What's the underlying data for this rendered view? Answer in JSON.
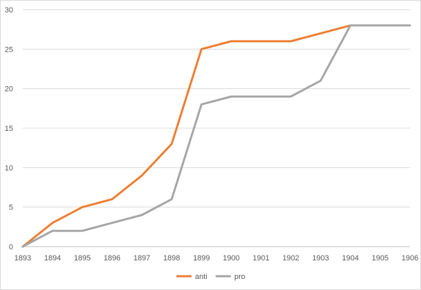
{
  "chart_data": {
    "type": "line",
    "categories": [
      "1893",
      "1894",
      "1895",
      "1896",
      "1897",
      "1898",
      "1899",
      "1900",
      "1901",
      "1902",
      "1903",
      "1904",
      "1905",
      "1906"
    ],
    "series": [
      {
        "name": "anti",
        "color": "#ed7d31",
        "values": [
          0,
          3,
          5,
          6,
          9,
          13,
          25,
          26,
          26,
          26,
          27,
          28,
          null,
          null
        ]
      },
      {
        "name": "pro",
        "color": "#a5a5a5",
        "values": [
          0,
          2,
          2,
          3,
          4,
          6,
          18,
          19,
          19,
          19,
          21,
          28,
          28,
          28
        ]
      }
    ],
    "ylim": [
      0,
      30
    ],
    "yticks": [
      "0",
      "5",
      "10",
      "15",
      "20",
      "25",
      "30"
    ],
    "grid": true,
    "legend_position": "bottom"
  }
}
